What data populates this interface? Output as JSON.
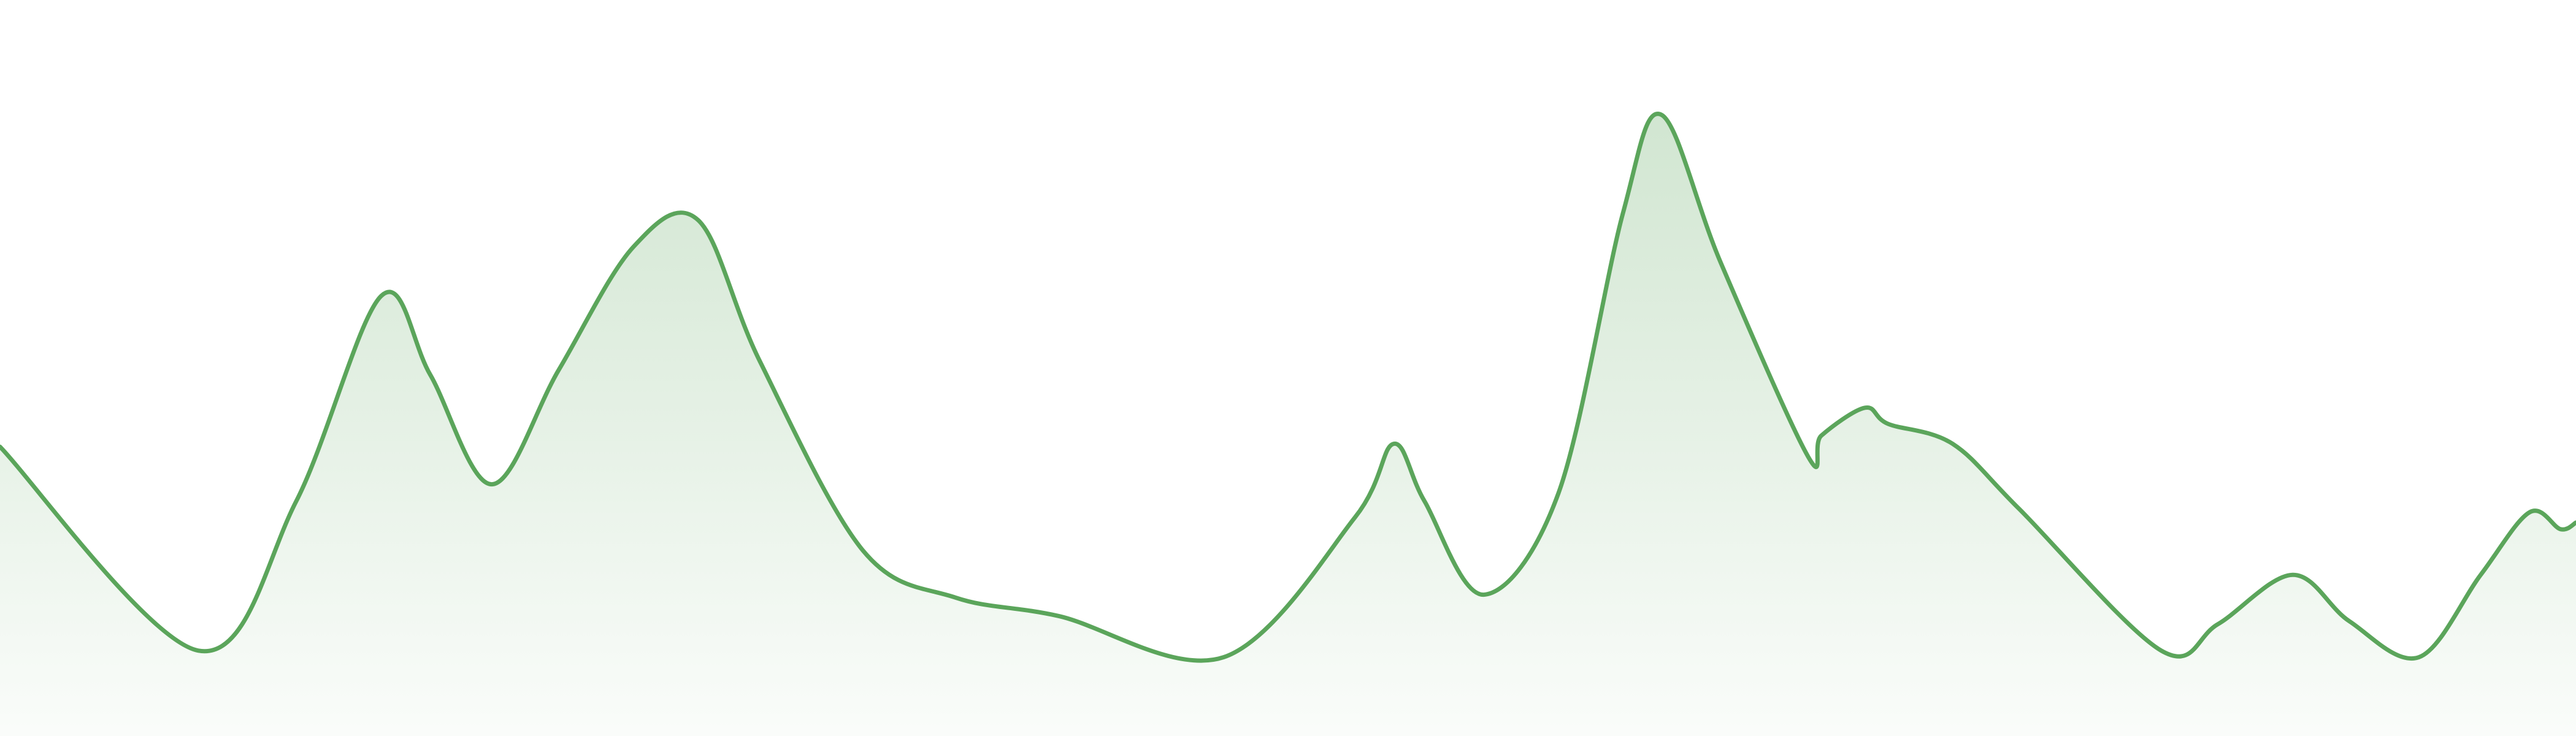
{
  "chart_data": {
    "type": "area",
    "color": "#5ba55b",
    "xlim": [
      0,
      100
    ],
    "ylim": [
      0,
      100
    ],
    "x": [
      0,
      7.7,
      11.5,
      14.8,
      16.7,
      19.1,
      21.7,
      24.6,
      27.1,
      29.5,
      33.5,
      37.1,
      41.1,
      47.5,
      52.6,
      54.1,
      55.3,
      57.6,
      60.5,
      63.0,
      64.5,
      66.8,
      70.2,
      70.7,
      72.4,
      73.3,
      75.8,
      78.4,
      83.9,
      86.1,
      89.0,
      91.2,
      93.9,
      96.3,
      98.2,
      99.4,
      100
    ],
    "values": [
      39.3,
      11.6,
      31.9,
      59.8,
      49.1,
      34.2,
      49.8,
      66.5,
      70.1,
      50.9,
      25.2,
      18.8,
      16.3,
      10.7,
      29.7,
      39.7,
      31.9,
      19.2,
      33.0,
      71.0,
      84.4,
      64.3,
      37.9,
      40.8,
      44.6,
      42.4,
      39.7,
      30.8,
      11.6,
      15.2,
      21.9,
      15.6,
      10.7,
      21.9,
      30.4,
      28.1,
      29.0
    ]
  }
}
